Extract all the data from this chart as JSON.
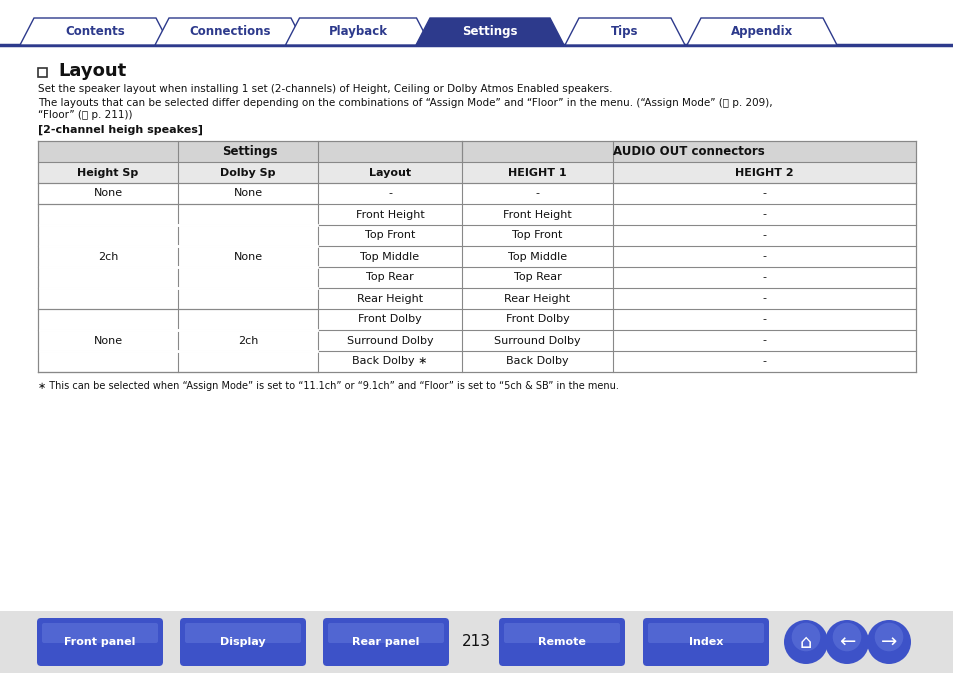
{
  "bg_color": "#ffffff",
  "tab_color_active": "#2d3a8c",
  "tab_color_inactive": "#ffffff",
  "tab_border_color": "#2d3a8c",
  "tab_text_active": "#ffffff",
  "tab_text_inactive": "#2d3a8c",
  "tabs": [
    "Contents",
    "Connections",
    "Playback",
    "Settings",
    "Tips",
    "Appendix"
  ],
  "active_tab": 3,
  "title": "Layout",
  "para1": "Set the speaker layout when installing 1 set (2-channels) of Height, Ceiling or Dolby Atmos Enabled speakers.",
  "para2_line1": "The layouts that can be selected differ depending on the combinations of “Assign Mode” and “Floor” in the menu. (“Assign Mode” ( p. 209),",
  "para2_line2": "“Floor” ( p. 211))",
  "section_label": "[2-channel heigh speakes]",
  "table_header1": "Settings",
  "table_header2": "AUDIO OUT connectors",
  "col_headers": [
    "Height Sp",
    "Dolby Sp",
    "Layout",
    "HEIGHT 1",
    "HEIGHT 2"
  ],
  "table_data": [
    [
      "None",
      "None",
      "-",
      "-",
      "-"
    ],
    [
      "2ch",
      "None",
      "Front Height",
      "Front Height",
      "-"
    ],
    [
      "",
      "",
      "Top Front",
      "Top Front",
      "-"
    ],
    [
      "",
      "",
      "Top Middle",
      "Top Middle",
      "-"
    ],
    [
      "",
      "",
      "Top Rear",
      "Top Rear",
      "-"
    ],
    [
      "",
      "",
      "Rear Height",
      "Rear Height",
      "-"
    ],
    [
      "None",
      "2ch",
      "Front Dolby",
      "Front Dolby",
      "-"
    ],
    [
      "",
      "",
      "Surround Dolby",
      "Surround Dolby",
      "-"
    ],
    [
      "",
      "",
      "Back Dolby ∗",
      "Back Dolby",
      "-"
    ]
  ],
  "footnote": "∗ This can be selected when “Assign Mode” is set to “11.1ch” or “9.1ch” and “Floor” is set to “5ch & SB” in the menu.",
  "page_number": "213",
  "bottom_buttons": [
    "Front panel",
    "Display",
    "Rear panel",
    "Remote",
    "Index"
  ],
  "button_color": "#3d52c8",
  "table_header_bg": "#d4d4d4",
  "col_header_bg": "#e8e8e8",
  "table_line_color": "#888888",
  "bottom_bar_color": "#e0e0e0",
  "tab_bar_line_color": "#2d3a8c"
}
